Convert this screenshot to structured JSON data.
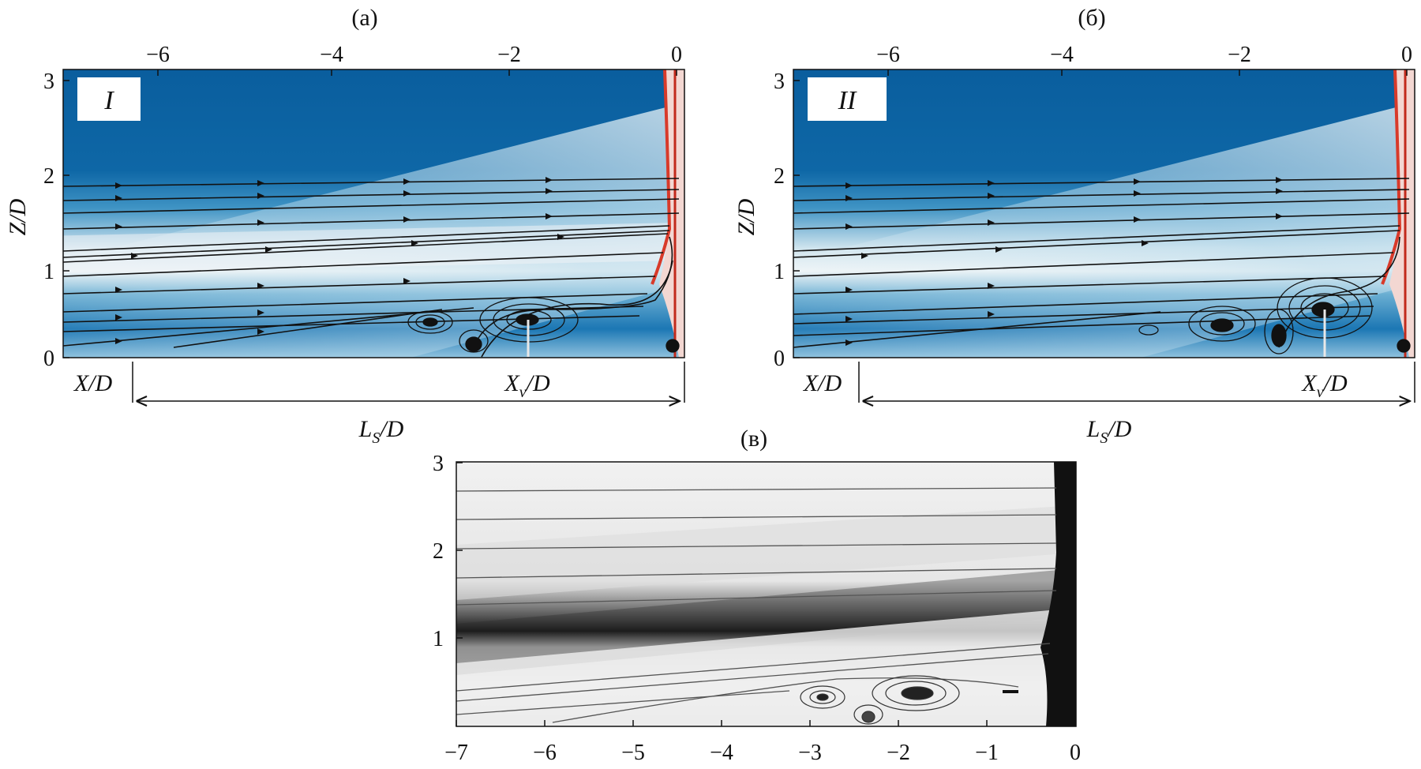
{
  "panel_a": {
    "label": "(a)",
    "tag": "I",
    "x_ticks": [
      "−6",
      "−4",
      "−2",
      "0"
    ],
    "y_ticks": [
      "0",
      "1",
      "2",
      "3"
    ],
    "ylabel": "Z/D",
    "xlabel": "X/D",
    "xv_label": "X",
    "xv_sub": "v",
    "xv_tail": "/D",
    "ls_label": "L",
    "ls_sub": "S",
    "ls_tail": "/D"
  },
  "panel_b": {
    "label": "(б)",
    "tag": "II",
    "x_ticks": [
      "−6",
      "−4",
      "−2",
      "0"
    ],
    "y_ticks": [
      "0",
      "1",
      "2",
      "3"
    ],
    "ylabel": "Z/D",
    "xlabel": "X/D",
    "xv_label": "X",
    "xv_sub": "v",
    "xv_tail": "/D",
    "ls_label": "L",
    "ls_sub": "S",
    "ls_tail": "/D"
  },
  "panel_c": {
    "label": "(в)",
    "x_ticks": [
      "−7",
      "−6",
      "−5",
      "−4",
      "−3",
      "−2",
      "−1",
      "0"
    ],
    "y_ticks": [
      "1",
      "2",
      "3"
    ]
  },
  "colors": {
    "flow_dark": "#0a5fa0",
    "flow_mid": "#4a9cc8",
    "flow_light": "#cfe3ee",
    "wall_red": "#d83a2a",
    "streamline": "#111111"
  }
}
